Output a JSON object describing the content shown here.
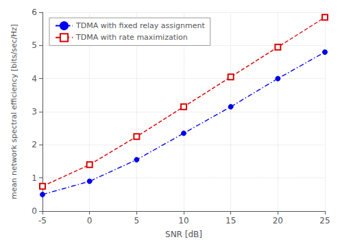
{
  "chart_data": {
    "type": "line",
    "x": [
      -5,
      0,
      5,
      10,
      15,
      20,
      25
    ],
    "series": [
      {
        "name": "TDMA with fixed relay assignment",
        "color": "#0000ee",
        "marker": "circle",
        "line_style": "dashdot",
        "values": [
          0.5,
          0.9,
          1.55,
          2.35,
          3.15,
          4.0,
          4.8
        ]
      },
      {
        "name": "TDMA with rate maximization",
        "color": "#dd0000",
        "marker": "open_square",
        "line_style": "dashed",
        "values": [
          0.75,
          1.4,
          2.25,
          3.15,
          4.05,
          4.95,
          5.85
        ]
      }
    ],
    "xlabel": "SNR [dB]",
    "ylabel": "mean network spectral efficiency [bits/sec/Hz]",
    "xlim": [
      -5,
      25
    ],
    "ylim": [
      0,
      6
    ],
    "xticks": [
      -5,
      0,
      5,
      10,
      15,
      20,
      25
    ],
    "yticks": [
      0,
      1,
      2,
      3,
      4,
      5,
      6
    ],
    "grid": true,
    "legend": "upper left"
  }
}
